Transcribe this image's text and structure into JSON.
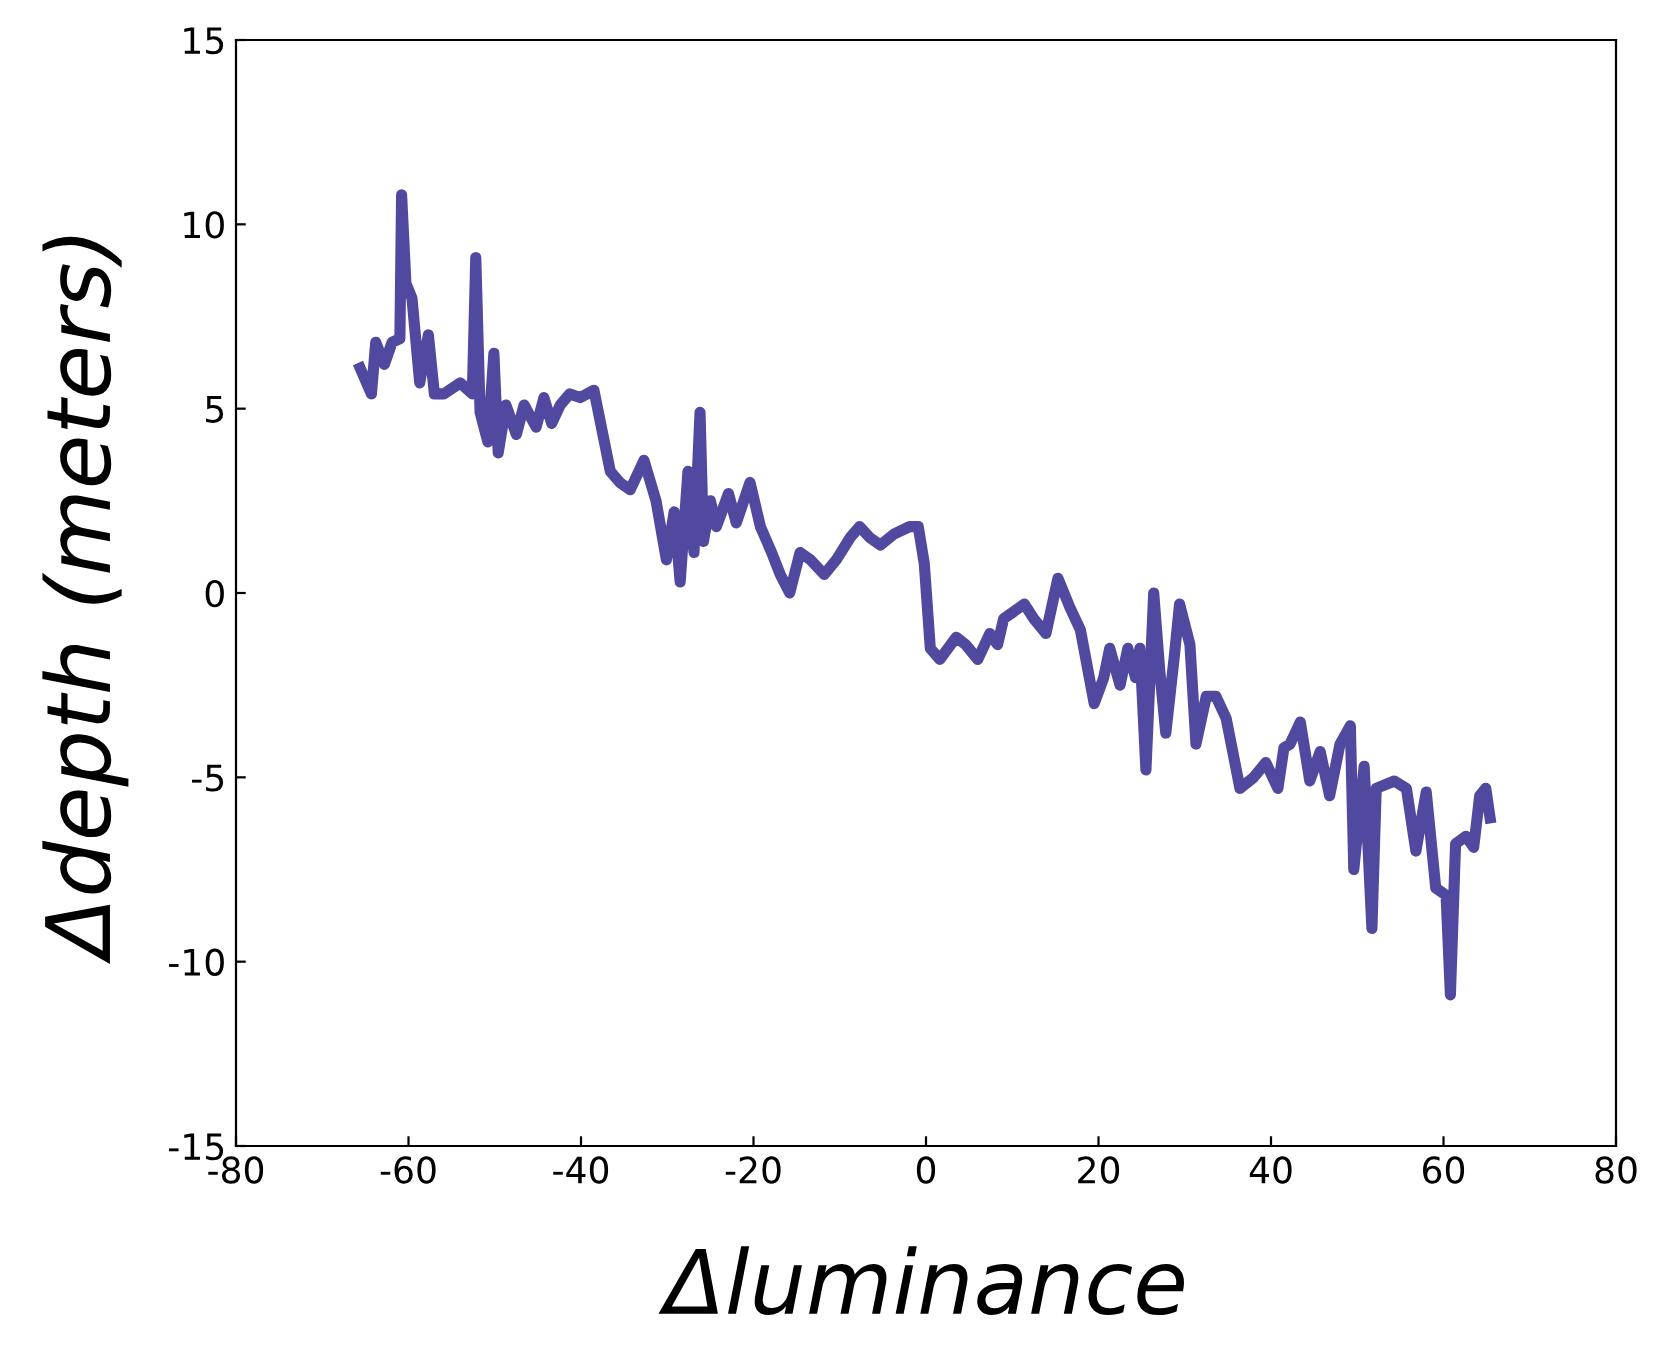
{
  "chart_data": {
    "type": "line",
    "xlabel": "Δluminance",
    "ylabel": "Δdepth (meters)",
    "xlim": [
      -80,
      80
    ],
    "xticks": [
      -80,
      -60,
      -40,
      -20,
      0,
      20,
      40,
      60,
      80
    ],
    "ylim": [
      -15,
      15
    ],
    "yticks": [
      -15,
      -10,
      -5,
      0,
      5,
      10,
      15
    ],
    "grid": false,
    "legend": false,
    "marker": "none",
    "line_style": "solid",
    "series": [
      {
        "color": "#5148a0",
        "x": [
          -65.6,
          -64.3,
          -63.8,
          -62.8,
          -61.9,
          -61.0,
          -60.8,
          -60.3,
          -59.6,
          -58.7,
          -57.7,
          -57.0,
          -55.9,
          -54.0,
          -52.6,
          -52.2,
          -51.7,
          -50.8,
          -50.1,
          -49.6,
          -48.7,
          -47.5,
          -46.6,
          -45.2,
          -44.3,
          -43.4,
          -42.4,
          -41.3,
          -40.1,
          -38.5,
          -36.6,
          -35.5,
          -34.3,
          -32.7,
          -31.3,
          -30.1,
          -29.2,
          -28.5,
          -27.6,
          -26.9,
          -26.2,
          -25.8,
          -25.0,
          -24.3,
          -22.9,
          -22.0,
          -20.4,
          -19.2,
          -17.9,
          -16.9,
          -15.8,
          -14.6,
          -13.4,
          -11.8,
          -10.4,
          -8.8,
          -7.7,
          -6.5,
          -5.3,
          -3.7,
          -1.9,
          -0.9,
          -0.2,
          0.5,
          1.6,
          3.5,
          4.6,
          6.0,
          7.4,
          8.3,
          9.0,
          11.4,
          12.5,
          13.9,
          15.3,
          16.7,
          17.9,
          19.5,
          20.6,
          21.3,
          22.5,
          23.4,
          24.3,
          24.8,
          25.5,
          26.4,
          27.1,
          27.8,
          28.8,
          29.4,
          30.6,
          31.3,
          32.5,
          33.6,
          34.8,
          36.4,
          38.0,
          39.4,
          40.8,
          41.5,
          42.2,
          43.4,
          44.5,
          45.7,
          46.8,
          48.0,
          49.2,
          49.6,
          50.8,
          51.7,
          52.2,
          54.3,
          55.7,
          56.8,
          58.0,
          59.1,
          60.3,
          60.8,
          61.4,
          62.6,
          63.5,
          64.2,
          64.9,
          65.4
        ],
        "values": [
          6.1,
          5.4,
          6.8,
          6.2,
          6.8,
          6.9,
          10.8,
          8.4,
          8.0,
          5.7,
          7.0,
          5.4,
          5.4,
          5.7,
          5.4,
          9.1,
          4.9,
          4.1,
          6.5,
          3.8,
          5.1,
          4.3,
          5.1,
          4.5,
          5.3,
          4.6,
          5.1,
          5.4,
          5.3,
          5.5,
          3.3,
          3.0,
          2.8,
          3.6,
          2.5,
          0.9,
          2.2,
          0.3,
          3.3,
          1.1,
          4.9,
          1.4,
          2.5,
          1.8,
          2.7,
          1.9,
          3.0,
          1.8,
          1.1,
          0.5,
          0.0,
          1.1,
          0.9,
          0.5,
          0.9,
          1.5,
          1.8,
          1.5,
          1.3,
          1.6,
          1.8,
          1.8,
          0.8,
          -1.5,
          -1.8,
          -1.2,
          -1.4,
          -1.8,
          -1.1,
          -1.4,
          -0.7,
          -0.3,
          -0.7,
          -1.1,
          0.4,
          -0.4,
          -1.0,
          -3.0,
          -2.3,
          -1.5,
          -2.5,
          -1.5,
          -2.3,
          -1.5,
          -4.8,
          0.0,
          -2.1,
          -3.8,
          -1.7,
          -0.3,
          -1.4,
          -4.1,
          -2.8,
          -2.8,
          -3.4,
          -5.3,
          -5.0,
          -4.6,
          -5.3,
          -4.2,
          -4.1,
          -3.5,
          -5.1,
          -4.3,
          -5.5,
          -4.1,
          -3.6,
          -7.5,
          -4.7,
          -9.1,
          -5.3,
          -5.1,
          -5.3,
          -7.0,
          -5.4,
          -8.0,
          -8.2,
          -10.9,
          -6.8,
          -6.6,
          -6.9,
          -5.5,
          -5.3,
          -6.1
        ]
      }
    ]
  }
}
